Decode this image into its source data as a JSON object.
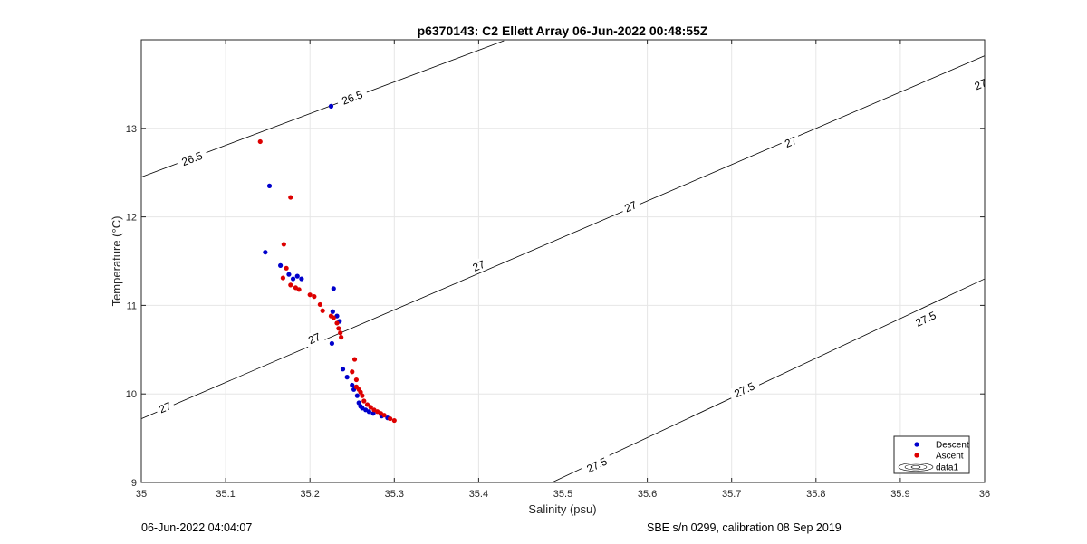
{
  "chart_data": {
    "type": "scatter",
    "title": "p6370143: C2 Ellett Array 06-Jun-2022 00:48:55Z",
    "xlabel": "Salinity (psu)",
    "ylabel": "Temperature (°C)",
    "xlim": [
      35,
      36
    ],
    "ylim": [
      9,
      14
    ],
    "xticks": [
      35,
      35.1,
      35.2,
      35.3,
      35.4,
      35.5,
      35.6,
      35.7,
      35.8,
      35.9,
      36
    ],
    "xtick_labels": [
      "35",
      "35.1",
      "35.2",
      "35.3",
      "35.4",
      "35.5",
      "35.6",
      "35.7",
      "35.8",
      "35.9",
      "36"
    ],
    "yticks": [
      9,
      10,
      11,
      12,
      13
    ],
    "ytick_labels": [
      "9",
      "10",
      "11",
      "12",
      "13"
    ],
    "grid": true,
    "legend_position": "bottom-right",
    "series": [
      {
        "name": "Descent",
        "color": "#0000CC",
        "x": [
          35.225,
          35.152,
          35.147,
          35.165,
          35.175,
          35.18,
          35.185,
          35.19,
          35.228,
          35.227,
          35.232,
          35.235,
          35.226,
          35.239,
          35.244,
          35.25,
          35.252,
          35.256,
          35.258,
          35.26,
          35.262,
          35.266,
          35.27,
          35.275,
          35.285,
          35.292
        ],
        "y": [
          13.25,
          12.35,
          11.6,
          11.45,
          11.35,
          11.3,
          11.33,
          11.3,
          11.19,
          10.93,
          10.88,
          10.82,
          10.57,
          10.28,
          10.19,
          10.1,
          10.05,
          9.98,
          9.9,
          9.86,
          9.84,
          9.82,
          9.8,
          9.78,
          9.75,
          9.73
        ]
      },
      {
        "name": "Ascent",
        "color": "#DD0000",
        "x": [
          35.141,
          35.177,
          35.169,
          35.172,
          35.168,
          35.177,
          35.183,
          35.187,
          35.2,
          35.205,
          35.212,
          35.215,
          35.225,
          35.228,
          35.232,
          35.234,
          35.236,
          35.237,
          35.253,
          35.25,
          35.255,
          35.255,
          35.258,
          35.26,
          35.262,
          35.264,
          35.268,
          35.272,
          35.276,
          35.28,
          35.284,
          35.288,
          35.295,
          35.3
        ],
        "y": [
          12.85,
          12.22,
          11.69,
          11.42,
          11.31,
          11.23,
          11.2,
          11.18,
          11.12,
          11.1,
          11.01,
          10.94,
          10.88,
          10.86,
          10.8,
          10.74,
          10.69,
          10.64,
          10.39,
          10.25,
          10.16,
          10.08,
          10.05,
          10.02,
          9.98,
          9.92,
          9.88,
          9.85,
          9.82,
          9.8,
          9.78,
          9.76,
          9.72,
          9.7
        ]
      }
    ],
    "contours": [
      {
        "label": "26.5",
        "points": [
          [
            35.0,
            12.45
          ],
          [
            35.43,
            13.99
          ]
        ],
        "label_positions": [
          [
            35.06,
            12.66
          ],
          [
            35.25,
            13.35
          ]
        ]
      },
      {
        "label": "27",
        "points": [
          [
            35.0,
            9.72
          ],
          [
            36.0,
            13.82
          ]
        ],
        "label_positions": [
          [
            35.028,
            9.85
          ],
          [
            35.205,
            10.63
          ],
          [
            35.4,
            11.45
          ],
          [
            35.58,
            12.12
          ],
          [
            35.77,
            12.85
          ],
          [
            35.995,
            13.5
          ]
        ]
      },
      {
        "label": "27.5",
        "points": [
          [
            35.487,
            9.0
          ],
          [
            36.0,
            11.3
          ]
        ],
        "label_positions": [
          [
            35.54,
            9.2
          ],
          [
            35.715,
            10.05
          ],
          [
            35.93,
            10.85
          ]
        ]
      }
    ],
    "legend_extra_label": "data1"
  },
  "footer": {
    "left": "06-Jun-2022 04:04:07",
    "right": "SBE s/n 0299, calibration 08 Sep 2019"
  }
}
